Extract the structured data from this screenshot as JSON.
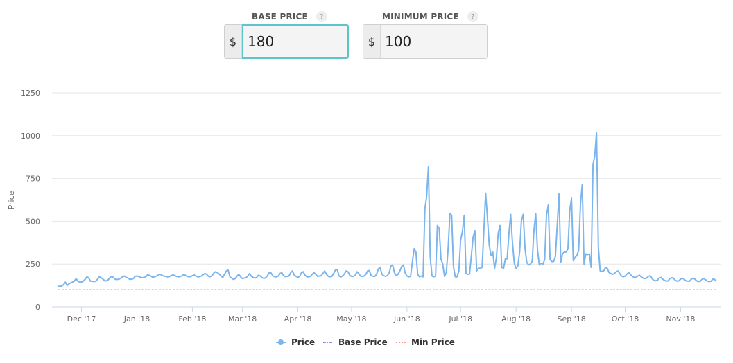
{
  "controls": {
    "base_price": {
      "label": "BASE PRICE",
      "help": "?",
      "currency": "$",
      "value": "180"
    },
    "minimum_price": {
      "label": "MINIMUM PRICE",
      "help": "?",
      "currency": "$",
      "value": "100"
    }
  },
  "colors": {
    "price": "#7cb5ec",
    "base": "#0d1fd6",
    "min": "#ff2a2a",
    "grid": "#e6e6e6",
    "axis": "#ccd6eb"
  },
  "chart_data": {
    "type": "line",
    "title": "",
    "xlabel": "",
    "ylabel": "Price",
    "ylim": [
      0,
      1250
    ],
    "yticks": [
      0,
      250,
      500,
      750,
      1000,
      1250
    ],
    "xticks": [
      "Dec '17",
      "Jan '18",
      "Feb '18",
      "Mar '18",
      "Apr '18",
      "May '18",
      "Jun '18",
      "Jul '18",
      "Aug '18",
      "Sep '18",
      "Oct '18",
      "Nov '18"
    ],
    "start_date": "2017-11-18",
    "series": [
      {
        "name": "Price",
        "style": "line-marker",
        "values": [
          120,
          120,
          122,
          130,
          145,
          125,
          135,
          140,
          145,
          150,
          165,
          150,
          145,
          145,
          150,
          160,
          175,
          170,
          150,
          150,
          148,
          150,
          162,
          175,
          170,
          162,
          152,
          152,
          158,
          172,
          178,
          170,
          160,
          160,
          162,
          168,
          175,
          180,
          172,
          168,
          160,
          162,
          165,
          178,
          180,
          178,
          172,
          170,
          172,
          176,
          188,
          184,
          178,
          172,
          176,
          180,
          186,
          190,
          184,
          180,
          178,
          175,
          176,
          182,
          186,
          184,
          178,
          175,
          176,
          180,
          188,
          185,
          178,
          176,
          176,
          182,
          186,
          180,
          175,
          176,
          180,
          188,
          195,
          190,
          178,
          176,
          182,
          198,
          205,
          200,
          192,
          180,
          172,
          190,
          210,
          215,
          175,
          168,
          160,
          165,
          180,
          190,
          175,
          165,
          168,
          170,
          180,
          195,
          178,
          172,
          168,
          172,
          185,
          180,
          170,
          166,
          170,
          182,
          200,
          198,
          180,
          176,
          175,
          180,
          195,
          200,
          182,
          176,
          178,
          180,
          200,
          210,
          185,
          178,
          172,
          178,
          200,
          205,
          185,
          175,
          175,
          178,
          190,
          200,
          190,
          178,
          180,
          182,
          195,
          210,
          190,
          178,
          175,
          178,
          195,
          215,
          218,
          180,
          175,
          180,
          192,
          210,
          205,
          185,
          178,
          178,
          182,
          205,
          195,
          180,
          178,
          180,
          190,
          210,
          212,
          182,
          178,
          178,
          190,
          222,
          228,
          190,
          182,
          178,
          182,
          198,
          238,
          245,
          200,
          182,
          190,
          210,
          235,
          245,
          198,
          180,
          175,
          178,
          260,
          340,
          320,
          190,
          175,
          180,
          175,
          572,
          645,
          820,
          290,
          180,
          175,
          180,
          475,
          460,
          280,
          250,
          178,
          200,
          340,
          545,
          535,
          235,
          175,
          175,
          210,
          390,
          440,
          535,
          195,
          190,
          192,
          300,
          410,
          445,
          210,
          225,
          225,
          230,
          450,
          665,
          520,
          360,
          300,
          320,
          225,
          285,
          430,
          475,
          230,
          225,
          280,
          280,
          430,
          540,
          375,
          255,
          225,
          240,
          320,
          505,
          540,
          340,
          260,
          245,
          250,
          265,
          450,
          545,
          330,
          245,
          255,
          250,
          275,
          535,
          595,
          275,
          265,
          265,
          295,
          475,
          660,
          260,
          310,
          320,
          320,
          340,
          560,
          635,
          270,
          290,
          300,
          330,
          600,
          715,
          250,
          310,
          305,
          310,
          230,
          830,
          880,
          1020,
          350,
          210,
          208,
          210,
          230,
          225,
          200,
          195,
          190,
          195,
          205,
          210,
          195,
          180,
          175,
          180,
          192,
          200,
          188,
          178,
          172,
          172,
          180,
          185,
          175,
          168,
          165,
          168,
          178,
          182,
          165,
          155,
          152,
          155,
          168,
          172,
          162,
          155,
          150,
          152,
          165,
          170,
          168,
          155,
          150,
          152,
          162,
          168,
          160,
          152,
          150,
          150,
          162,
          168,
          162,
          152,
          148,
          150,
          160,
          165,
          158,
          150,
          148,
          150,
          162,
          160,
          148
        ]
      },
      {
        "name": "Base Price",
        "style": "dash-dot",
        "value": 180
      },
      {
        "name": "Min Price",
        "style": "dashed",
        "value": 100
      }
    ],
    "legend": {
      "placement": "bottom-center",
      "items": [
        "Price",
        "Base Price",
        "Min Price"
      ]
    }
  }
}
